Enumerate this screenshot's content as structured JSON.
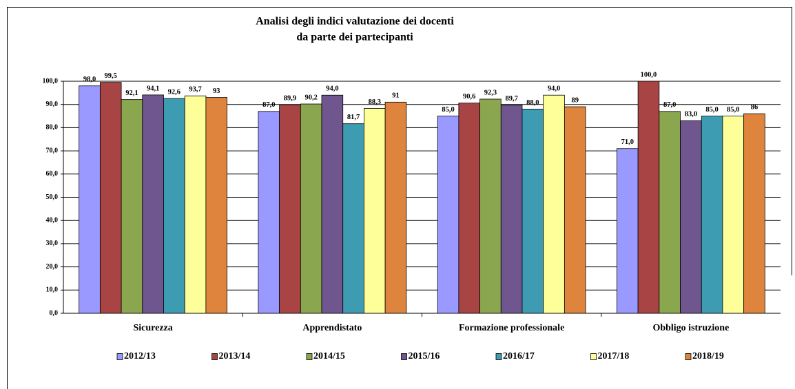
{
  "chart_data": {
    "type": "bar",
    "title": [
      "Analisi degli indici valutazione dei docenti",
      "da parte dei partecipanti"
    ],
    "categories": [
      "Sicurezza",
      "Apprendistato",
      "Formazione professionale",
      "Obbligo istruzione"
    ],
    "series": [
      {
        "name": "2012/13",
        "color": "#9999ff",
        "values": [
          98.0,
          87.0,
          85.0,
          71.0
        ],
        "value_labels": [
          "98,0",
          "87,0",
          "85,0",
          "71,0"
        ]
      },
      {
        "name": "2013/14",
        "color": "#a94444",
        "values": [
          99.5,
          89.9,
          90.6,
          100.0
        ],
        "value_labels": [
          "99,5",
          "89,9",
          "90,6",
          "100,0"
        ]
      },
      {
        "name": "2014/15",
        "color": "#8aa64e",
        "values": [
          92.1,
          90.2,
          92.3,
          87.0
        ],
        "value_labels": [
          "92,1",
          "90,2",
          "92,3",
          "87,0"
        ]
      },
      {
        "name": "2015/16",
        "color": "#70568e",
        "values": [
          94.1,
          94.0,
          89.7,
          83.0
        ],
        "value_labels": [
          "94,1",
          "94,0",
          "89,7",
          "83,0"
        ]
      },
      {
        "name": "2016/17",
        "color": "#3d9cb2",
        "values": [
          92.6,
          81.7,
          88.0,
          85.0
        ],
        "value_labels": [
          "92,6",
          "81,7",
          "88,0",
          "85,0"
        ]
      },
      {
        "name": "2017/18",
        "color": "#ffff99",
        "values": [
          93.7,
          88.3,
          94.0,
          85.0
        ],
        "value_labels": [
          "93,7",
          "88,3",
          "94,0",
          "85,0"
        ]
      },
      {
        "name": "2018/19",
        "color": "#df843c",
        "values": [
          93,
          91,
          89,
          86
        ]
      }
    ],
    "ylim": [
      0,
      100
    ],
    "yticks": [
      {
        "value": 0,
        "label": "0,0"
      },
      {
        "value": 10,
        "label": "10,0"
      },
      {
        "value": 20,
        "label": "20,0"
      },
      {
        "value": 30,
        "label": "30,0"
      },
      {
        "value": 40,
        "label": "40,0"
      },
      {
        "value": 50,
        "label": "50,0"
      },
      {
        "value": 60,
        "label": "60,0"
      },
      {
        "value": 70,
        "label": "70,0"
      },
      {
        "value": 80,
        "label": "80,0"
      },
      {
        "value": 90,
        "label": "90,0"
      },
      {
        "value": 100,
        "label": "100,0"
      }
    ],
    "grid": true,
    "legend": "bottom"
  }
}
